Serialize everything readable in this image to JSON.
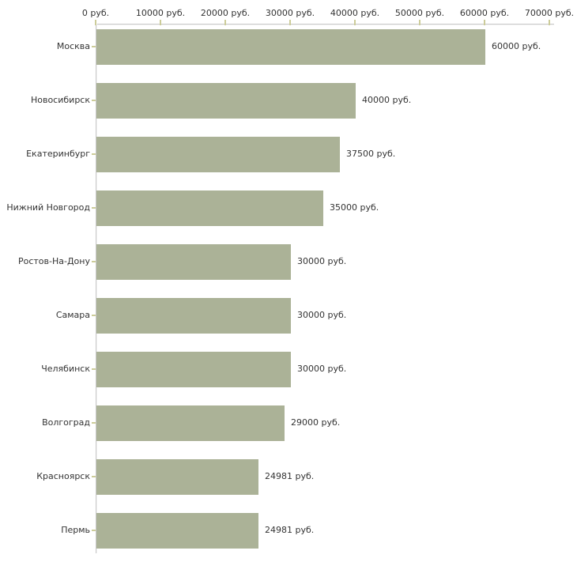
{
  "chart_data": {
    "type": "bar",
    "orientation": "horizontal",
    "title": "",
    "categories": [
      "Москва",
      "Новосибирск",
      "Екатеринбург",
      "Нижний Новгород",
      "Ростов-На-Дону",
      "Самара",
      "Челябинск",
      "Волгоград",
      "Красноярск",
      "Пермь"
    ],
    "values": [
      60000,
      40000,
      37500,
      35000,
      30000,
      30000,
      30000,
      29000,
      24981,
      24981
    ],
    "value_labels": [
      "60000 руб.",
      "40000 руб.",
      "37500 руб.",
      "35000 руб.",
      "30000 руб.",
      "30000 руб.",
      "30000 руб.",
      "29000 руб.",
      "24981 руб.",
      "24981 руб."
    ],
    "x_axis": {
      "ticks": [
        0,
        10000,
        20000,
        30000,
        40000,
        50000,
        60000,
        70000
      ],
      "tick_labels": [
        "0 руб.",
        "10000 руб.",
        "20000 руб.",
        "30000 руб.",
        "40000 руб.",
        "50000 руб.",
        "60000 руб.",
        "70000 руб."
      ],
      "min": 0,
      "max": 70000,
      "unit": "руб."
    },
    "ylabel": "",
    "xlabel": "",
    "legend": "none",
    "grid": false,
    "colors": {
      "bar": "#ABB297",
      "axis": "#C9C9C9",
      "tick": "#CCCC99",
      "text": "#333333",
      "background": "#FFFFFF"
    }
  }
}
